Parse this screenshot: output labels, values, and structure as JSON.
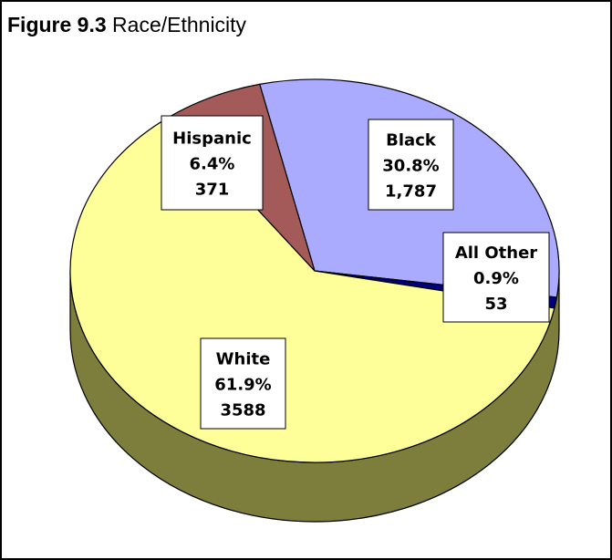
{
  "figure": {
    "number": "Figure 9.3",
    "title": "Race/Ethnicity"
  },
  "chart_data": {
    "type": "pie",
    "title": "Race/Ethnicity",
    "slices": [
      {
        "label": "Black",
        "percent": "30.8%",
        "count": "1,787",
        "value": 1787,
        "color": "#aaaaff"
      },
      {
        "label": "All Other",
        "percent": "0.9%",
        "count": "53",
        "value": 53,
        "color": "#000080"
      },
      {
        "label": "White",
        "percent": "61.9%",
        "count": "3588",
        "value": 3588,
        "color": "#ffff99"
      },
      {
        "label": "Hispanic",
        "percent": "6.4%",
        "count": "371",
        "value": 371,
        "color": "#a55a5a"
      }
    ],
    "side_color": "#7e7e3c"
  }
}
